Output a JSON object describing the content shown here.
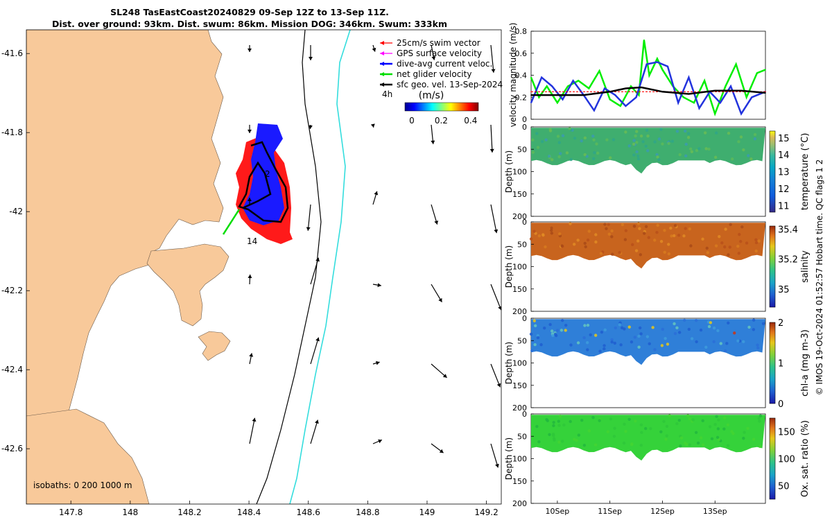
{
  "header": {
    "title_line1": "SL248 TasEastCoast20240829 09-Sep 12Z to 13-Sep 11Z.",
    "title_line2": "Dist. over ground: 93km. Dist. swum: 86km. Mission DOG: 346km. Swum: 333km"
  },
  "side_label": "© IMOS 19-Oct-2024 01:52:57 Hobart time. QC flags 1  2",
  "colors": {
    "land": "#f8c99a",
    "swim_vector": "#ff0000",
    "gps_velocity": "#ff00ff",
    "dive_avg": "#0000ff",
    "net_glider": "#00dd00",
    "sfc_geo": "#000000",
    "isobath_200": "#000000",
    "isobath_1000": "#33dddd"
  },
  "map": {
    "x_ticks": [
      "147.8",
      "148",
      "148.2",
      "148.4",
      "148.6",
      "148.8",
      "149",
      "149.2"
    ],
    "y_ticks": [
      "-41.6",
      "-41.8",
      "-42",
      "-42.2",
      "-42.4",
      "-42.6"
    ],
    "lon_range": [
      147.65,
      149.25
    ],
    "lat_range": [
      -42.74,
      -41.54
    ],
    "legend": [
      {
        "label": "25cm/s swim vector",
        "color": "#ff0000"
      },
      {
        "label": "GPS surface velocity",
        "color": "#ff00ff"
      },
      {
        "label": "dive-avg current veloc.",
        "color": "#0000ff"
      },
      {
        "label": "net glider velocity",
        "color": "#00dd00"
      },
      {
        "label": "sfc geo. vel. 13-Sep-2024",
        "color": "#000000"
      }
    ],
    "legend_extra": "4h",
    "colorbar_title": "(m/s)",
    "colorbar_ticks": [
      "0",
      "0.2",
      "0.4"
    ],
    "track_labels": [
      "2",
      "14"
    ],
    "isobath_text": "isobaths: 0   200  1000 m"
  },
  "chart_data": [
    {
      "type": "line",
      "title": "",
      "ylabel": "velocity magnitude (m/s)",
      "ylim": [
        0,
        0.8
      ],
      "yticks": [
        "0",
        "0.2",
        "0.4",
        "0.6",
        "0.8"
      ],
      "xlim": [
        9.5,
        13.96
      ],
      "series": [
        {
          "name": "net glider velocity",
          "color": "#00ee00",
          "x": [
            9.5,
            9.65,
            9.8,
            10.0,
            10.2,
            10.4,
            10.6,
            10.8,
            11.0,
            11.2,
            11.4,
            11.55,
            11.65,
            11.75,
            11.9,
            12.0,
            12.2,
            12.4,
            12.6,
            12.8,
            13.0,
            13.2,
            13.4,
            13.6,
            13.8,
            13.96
          ],
          "y": [
            0.38,
            0.2,
            0.3,
            0.15,
            0.3,
            0.35,
            0.28,
            0.44,
            0.18,
            0.12,
            0.3,
            0.22,
            0.72,
            0.4,
            0.55,
            0.45,
            0.3,
            0.2,
            0.15,
            0.35,
            0.05,
            0.3,
            0.5,
            0.2,
            0.42,
            0.45
          ]
        },
        {
          "name": "dive-avg current veloc.",
          "color": "#2233dd",
          "x": [
            9.5,
            9.7,
            9.9,
            10.1,
            10.3,
            10.5,
            10.7,
            10.9,
            11.1,
            11.3,
            11.5,
            11.7,
            11.9,
            12.1,
            12.3,
            12.5,
            12.7,
            12.9,
            13.1,
            13.3,
            13.5,
            13.7,
            13.96
          ],
          "y": [
            0.15,
            0.38,
            0.3,
            0.18,
            0.35,
            0.22,
            0.08,
            0.28,
            0.22,
            0.12,
            0.2,
            0.5,
            0.52,
            0.48,
            0.15,
            0.38,
            0.1,
            0.25,
            0.15,
            0.3,
            0.05,
            0.2,
            0.25
          ]
        },
        {
          "name": "25cm/s swim vector",
          "color": "#ff0000",
          "x": [
            9.5,
            13.96
          ],
          "y": [
            0.25,
            0.25
          ]
        },
        {
          "name": "sfc geo. vel. 13-Sep-2024",
          "color": "#000000",
          "x": [
            9.5,
            10.0,
            10.5,
            11.0,
            11.3,
            11.6,
            12.0,
            12.5,
            13.0,
            13.5,
            13.96
          ],
          "y": [
            0.22,
            0.22,
            0.22,
            0.25,
            0.28,
            0.29,
            0.25,
            0.23,
            0.26,
            0.26,
            0.24
          ]
        }
      ]
    },
    {
      "type": "heatmap",
      "ylabel": "Depth (m)",
      "zlabel": "temperature (°C)",
      "ylim": [
        200,
        0
      ],
      "yticks": [
        "0",
        "50",
        "100",
        "150",
        "200"
      ],
      "zticks": [
        "11",
        "12",
        "13",
        "14",
        "15"
      ],
      "zlim": [
        10.6,
        15.4
      ],
      "typical_value": 12.8
    },
    {
      "type": "heatmap",
      "ylabel": "Depth (m)",
      "zlabel": "salinity",
      "ylim": [
        200,
        0
      ],
      "yticks": [
        "0",
        "50",
        "100",
        "150",
        "200"
      ],
      "zticks": [
        "35",
        "35.2",
        "35.4"
      ],
      "zlim": [
        34.88,
        35.42
      ],
      "typical_value": 35.3
    },
    {
      "type": "heatmap",
      "ylabel": "Depth (m)",
      "zlabel": "chl-a (mg m-3)",
      "ylim": [
        200,
        0
      ],
      "yticks": [
        "0",
        "50",
        "100",
        "150",
        "200"
      ],
      "zticks": [
        "0",
        "1",
        "2"
      ],
      "zlim": [
        0,
        2
      ],
      "typical_value": 0.45
    },
    {
      "type": "heatmap",
      "ylabel": "Depth (m)",
      "zlabel": "Ox. sat. ratio (%)",
      "ylim": [
        200,
        0
      ],
      "yticks": [
        "0",
        "50",
        "100",
        "150",
        "200"
      ],
      "zticks": [
        "50",
        "100",
        "150"
      ],
      "zlim": [
        25,
        175
      ],
      "typical_value": 103
    }
  ],
  "time_axis": [
    "10Sep",
    "11Sep",
    "12Sep",
    "13Sep"
  ]
}
